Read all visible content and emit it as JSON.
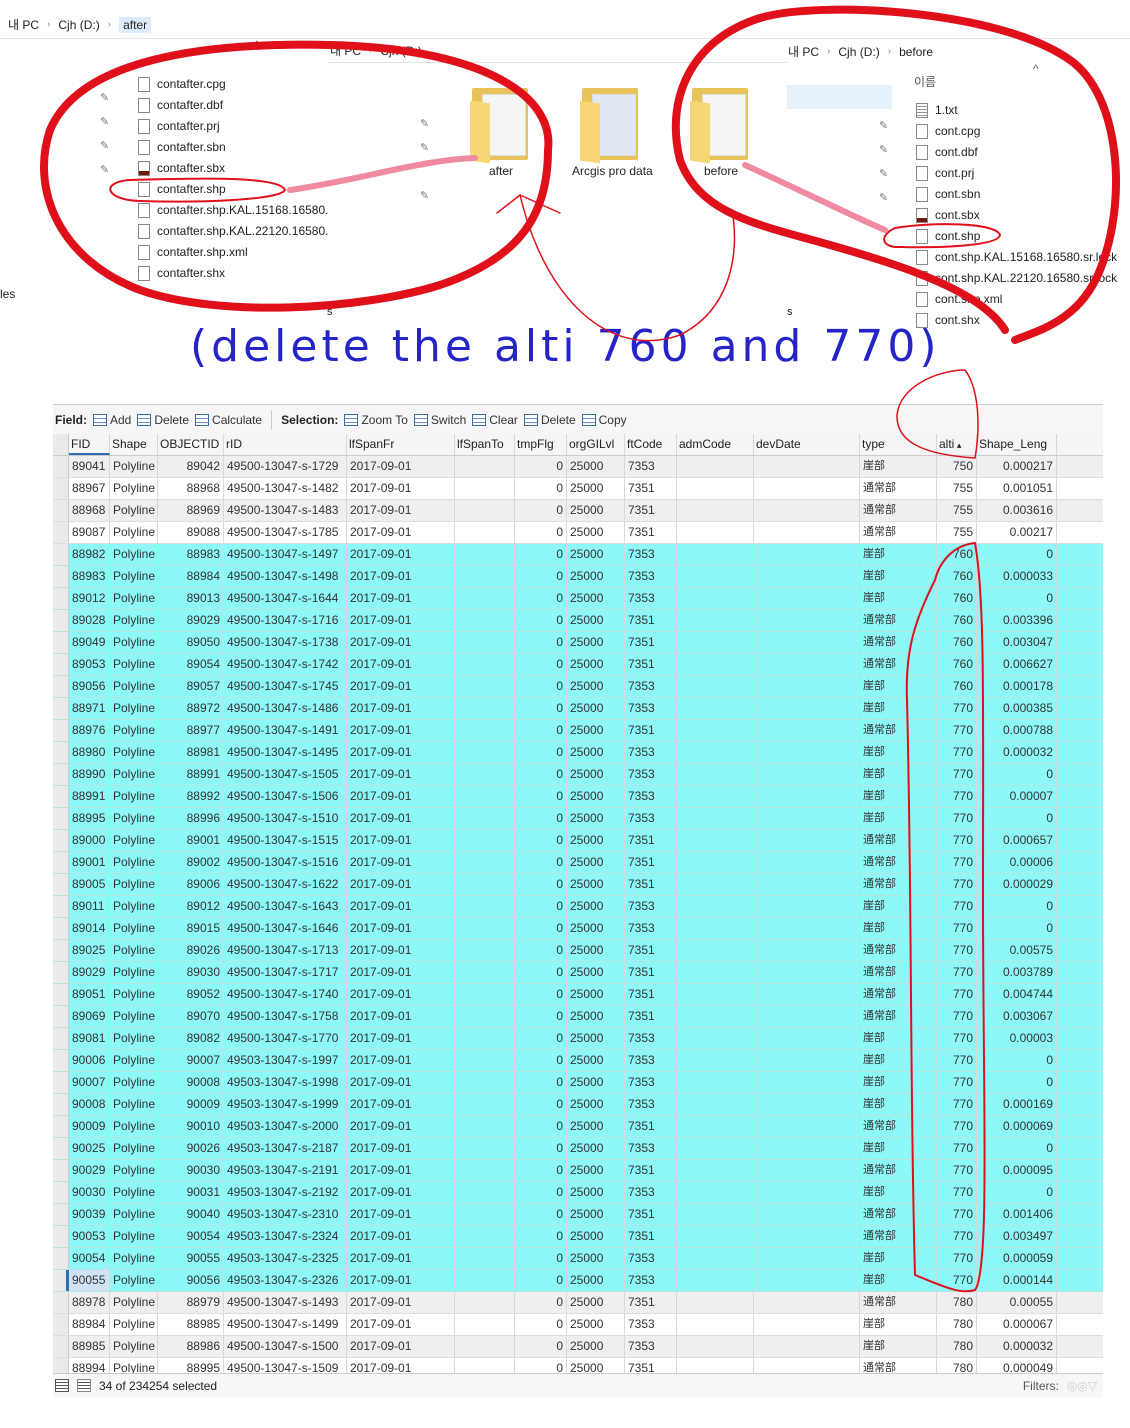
{
  "explorer_after": {
    "breadcrumb": [
      "내 PC",
      "Cjh (D:)",
      "after"
    ],
    "files": [
      {
        "name": "contafter.cpg",
        "icon": "file-icon"
      },
      {
        "name": "contafter.dbf",
        "icon": "file-icon"
      },
      {
        "name": "contafter.prj",
        "icon": "file-icon"
      },
      {
        "name": "contafter.sbn",
        "icon": "file-icon"
      },
      {
        "name": "contafter.sbx",
        "icon": "sbx-file-icon"
      },
      {
        "name": "contafter.shp",
        "icon": "file-icon"
      },
      {
        "name": "contafter.shp.KAL.15168.16580.",
        "icon": "file-icon"
      },
      {
        "name": "contafter.shp.KAL.22120.16580.",
        "icon": "file-icon"
      },
      {
        "name": "contafter.shp.xml",
        "icon": "file-icon"
      },
      {
        "name": "contafter.shx",
        "icon": "file-icon"
      }
    ],
    "side_text": "les"
  },
  "explorer_drive": {
    "breadcrumb": [
      "내 PC",
      "Cjh (D:)"
    ],
    "folders": [
      "after",
      "Arcgis pro data",
      "before"
    ],
    "side_text": "s"
  },
  "explorer_before": {
    "breadcrumb": [
      "내 PC",
      "Cjh (D:)",
      "before"
    ],
    "column_header": "이름",
    "files": [
      {
        "name": "1.txt",
        "icon": "text-file-icon"
      },
      {
        "name": "cont.cpg",
        "icon": "file-icon"
      },
      {
        "name": "cont.dbf",
        "icon": "file-icon"
      },
      {
        "name": "cont.prj",
        "icon": "file-icon"
      },
      {
        "name": "cont.sbn",
        "icon": "file-icon"
      },
      {
        "name": "cont.sbx",
        "icon": "sbx-file-icon"
      },
      {
        "name": "cont.shp",
        "icon": "file-icon"
      },
      {
        "name": "cont.shp.KAL.15168.16580.sr.lock",
        "icon": "file-icon"
      },
      {
        "name": "cont.shp.KAL.22120.16580.sr.lock",
        "icon": "file-icon"
      },
      {
        "name": "cont.shp.xml",
        "icon": "file-icon"
      },
      {
        "name": "cont.shx",
        "icon": "file-icon"
      }
    ],
    "side_text": "s"
  },
  "annotation": {
    "text": "(delete the alti 760 and 770)",
    "text_color": "#2424c8",
    "marker_color": "#e0101a",
    "link_color": "#f08aa0"
  },
  "toolbar": {
    "field_label": "Field:",
    "field_buttons": [
      "Add",
      "Delete",
      "Calculate"
    ],
    "selection_label": "Selection:",
    "selection_buttons": [
      "Zoom To",
      "Switch",
      "Clear",
      "Delete",
      "Copy"
    ]
  },
  "table": {
    "columns": [
      "FID",
      "Shape",
      "OBJECTID",
      "rID",
      "lfSpanFr",
      "lfSpanTo",
      "tmpFlg",
      "orgGILvl",
      "ftCode",
      "admCode",
      "devDate",
      "type",
      "alti",
      "Shape_Leng"
    ],
    "sorted_column": "alti",
    "selection_color": "#8ef8f8",
    "rows": [
      {
        "sel": false,
        "v": [
          "89041",
          "Polyline",
          "89042",
          "49500-13047-s-1729",
          "2017-09-01",
          "",
          "0",
          "25000",
          "7353",
          "",
          "",
          "崖部",
          "750",
          "0.000217"
        ]
      },
      {
        "sel": false,
        "v": [
          "88967",
          "Polyline",
          "88968",
          "49500-13047-s-1482",
          "2017-09-01",
          "",
          "0",
          "25000",
          "7351",
          "",
          "",
          "通常部",
          "755",
          "0.001051"
        ]
      },
      {
        "sel": false,
        "v": [
          "88968",
          "Polyline",
          "88969",
          "49500-13047-s-1483",
          "2017-09-01",
          "",
          "0",
          "25000",
          "7351",
          "",
          "",
          "通常部",
          "755",
          "0.003616"
        ]
      },
      {
        "sel": false,
        "v": [
          "89087",
          "Polyline",
          "89088",
          "49500-13047-s-1785",
          "2017-09-01",
          "",
          "0",
          "25000",
          "7351",
          "",
          "",
          "通常部",
          "755",
          "0.00217"
        ]
      },
      {
        "sel": true,
        "v": [
          "88982",
          "Polyline",
          "88983",
          "49500-13047-s-1497",
          "2017-09-01",
          "",
          "0",
          "25000",
          "7353",
          "",
          "",
          "崖部",
          "760",
          "0"
        ]
      },
      {
        "sel": true,
        "v": [
          "88983",
          "Polyline",
          "88984",
          "49500-13047-s-1498",
          "2017-09-01",
          "",
          "0",
          "25000",
          "7353",
          "",
          "",
          "崖部",
          "760",
          "0.000033"
        ]
      },
      {
        "sel": true,
        "v": [
          "89012",
          "Polyline",
          "89013",
          "49500-13047-s-1644",
          "2017-09-01",
          "",
          "0",
          "25000",
          "7353",
          "",
          "",
          "崖部",
          "760",
          "0"
        ]
      },
      {
        "sel": true,
        "v": [
          "89028",
          "Polyline",
          "89029",
          "49500-13047-s-1716",
          "2017-09-01",
          "",
          "0",
          "25000",
          "7351",
          "",
          "",
          "通常部",
          "760",
          "0.003396"
        ]
      },
      {
        "sel": true,
        "v": [
          "89049",
          "Polyline",
          "89050",
          "49500-13047-s-1738",
          "2017-09-01",
          "",
          "0",
          "25000",
          "7351",
          "",
          "",
          "通常部",
          "760",
          "0.003047"
        ]
      },
      {
        "sel": true,
        "v": [
          "89053",
          "Polyline",
          "89054",
          "49500-13047-s-1742",
          "2017-09-01",
          "",
          "0",
          "25000",
          "7351",
          "",
          "",
          "通常部",
          "760",
          "0.006627"
        ]
      },
      {
        "sel": true,
        "v": [
          "89056",
          "Polyline",
          "89057",
          "49500-13047-s-1745",
          "2017-09-01",
          "",
          "0",
          "25000",
          "7353",
          "",
          "",
          "崖部",
          "760",
          "0.000178"
        ]
      },
      {
        "sel": true,
        "v": [
          "88971",
          "Polyline",
          "88972",
          "49500-13047-s-1486",
          "2017-09-01",
          "",
          "0",
          "25000",
          "7353",
          "",
          "",
          "崖部",
          "770",
          "0.000385"
        ]
      },
      {
        "sel": true,
        "v": [
          "88976",
          "Polyline",
          "88977",
          "49500-13047-s-1491",
          "2017-09-01",
          "",
          "0",
          "25000",
          "7351",
          "",
          "",
          "通常部",
          "770",
          "0.000788"
        ]
      },
      {
        "sel": true,
        "v": [
          "88980",
          "Polyline",
          "88981",
          "49500-13047-s-1495",
          "2017-09-01",
          "",
          "0",
          "25000",
          "7353",
          "",
          "",
          "崖部",
          "770",
          "0.000032"
        ]
      },
      {
        "sel": true,
        "v": [
          "88990",
          "Polyline",
          "88991",
          "49500-13047-s-1505",
          "2017-09-01",
          "",
          "0",
          "25000",
          "7353",
          "",
          "",
          "崖部",
          "770",
          "0"
        ]
      },
      {
        "sel": true,
        "v": [
          "88991",
          "Polyline",
          "88992",
          "49500-13047-s-1506",
          "2017-09-01",
          "",
          "0",
          "25000",
          "7353",
          "",
          "",
          "崖部",
          "770",
          "0.00007"
        ]
      },
      {
        "sel": true,
        "v": [
          "88995",
          "Polyline",
          "88996",
          "49500-13047-s-1510",
          "2017-09-01",
          "",
          "0",
          "25000",
          "7353",
          "",
          "",
          "崖部",
          "770",
          "0"
        ]
      },
      {
        "sel": true,
        "v": [
          "89000",
          "Polyline",
          "89001",
          "49500-13047-s-1515",
          "2017-09-01",
          "",
          "0",
          "25000",
          "7351",
          "",
          "",
          "通常部",
          "770",
          "0.000657"
        ]
      },
      {
        "sel": true,
        "v": [
          "89001",
          "Polyline",
          "89002",
          "49500-13047-s-1516",
          "2017-09-01",
          "",
          "0",
          "25000",
          "7351",
          "",
          "",
          "通常部",
          "770",
          "0.00006"
        ]
      },
      {
        "sel": true,
        "v": [
          "89005",
          "Polyline",
          "89006",
          "49500-13047-s-1622",
          "2017-09-01",
          "",
          "0",
          "25000",
          "7351",
          "",
          "",
          "通常部",
          "770",
          "0.000029"
        ]
      },
      {
        "sel": true,
        "v": [
          "89011",
          "Polyline",
          "89012",
          "49500-13047-s-1643",
          "2017-09-01",
          "",
          "0",
          "25000",
          "7353",
          "",
          "",
          "崖部",
          "770",
          "0"
        ]
      },
      {
        "sel": true,
        "v": [
          "89014",
          "Polyline",
          "89015",
          "49500-13047-s-1646",
          "2017-09-01",
          "",
          "0",
          "25000",
          "7353",
          "",
          "",
          "崖部",
          "770",
          "0"
        ]
      },
      {
        "sel": true,
        "v": [
          "89025",
          "Polyline",
          "89026",
          "49500-13047-s-1713",
          "2017-09-01",
          "",
          "0",
          "25000",
          "7351",
          "",
          "",
          "通常部",
          "770",
          "0.00575"
        ]
      },
      {
        "sel": true,
        "v": [
          "89029",
          "Polyline",
          "89030",
          "49500-13047-s-1717",
          "2017-09-01",
          "",
          "0",
          "25000",
          "7351",
          "",
          "",
          "通常部",
          "770",
          "0.003789"
        ]
      },
      {
        "sel": true,
        "v": [
          "89051",
          "Polyline",
          "89052",
          "49500-13047-s-1740",
          "2017-09-01",
          "",
          "0",
          "25000",
          "7351",
          "",
          "",
          "通常部",
          "770",
          "0.004744"
        ]
      },
      {
        "sel": true,
        "v": [
          "89069",
          "Polyline",
          "89070",
          "49500-13047-s-1758",
          "2017-09-01",
          "",
          "0",
          "25000",
          "7351",
          "",
          "",
          "通常部",
          "770",
          "0.003067"
        ]
      },
      {
        "sel": true,
        "v": [
          "89081",
          "Polyline",
          "89082",
          "49500-13047-s-1770",
          "2017-09-01",
          "",
          "0",
          "25000",
          "7353",
          "",
          "",
          "崖部",
          "770",
          "0.00003"
        ]
      },
      {
        "sel": true,
        "v": [
          "90006",
          "Polyline",
          "90007",
          "49503-13047-s-1997",
          "2017-09-01",
          "",
          "0",
          "25000",
          "7353",
          "",
          "",
          "崖部",
          "770",
          "0"
        ]
      },
      {
        "sel": true,
        "v": [
          "90007",
          "Polyline",
          "90008",
          "49503-13047-s-1998",
          "2017-09-01",
          "",
          "0",
          "25000",
          "7353",
          "",
          "",
          "崖部",
          "770",
          "0"
        ]
      },
      {
        "sel": true,
        "v": [
          "90008",
          "Polyline",
          "90009",
          "49503-13047-s-1999",
          "2017-09-01",
          "",
          "0",
          "25000",
          "7353",
          "",
          "",
          "崖部",
          "770",
          "0.000169"
        ]
      },
      {
        "sel": true,
        "v": [
          "90009",
          "Polyline",
          "90010",
          "49503-13047-s-2000",
          "2017-09-01",
          "",
          "0",
          "25000",
          "7351",
          "",
          "",
          "通常部",
          "770",
          "0.000069"
        ]
      },
      {
        "sel": true,
        "v": [
          "90025",
          "Polyline",
          "90026",
          "49503-13047-s-2187",
          "2017-09-01",
          "",
          "0",
          "25000",
          "7353",
          "",
          "",
          "崖部",
          "770",
          "0"
        ]
      },
      {
        "sel": true,
        "v": [
          "90029",
          "Polyline",
          "90030",
          "49503-13047-s-2191",
          "2017-09-01",
          "",
          "0",
          "25000",
          "7351",
          "",
          "",
          "通常部",
          "770",
          "0.000095"
        ]
      },
      {
        "sel": true,
        "v": [
          "90030",
          "Polyline",
          "90031",
          "49503-13047-s-2192",
          "2017-09-01",
          "",
          "0",
          "25000",
          "7353",
          "",
          "",
          "崖部",
          "770",
          "0"
        ]
      },
      {
        "sel": true,
        "v": [
          "90039",
          "Polyline",
          "90040",
          "49503-13047-s-2310",
          "2017-09-01",
          "",
          "0",
          "25000",
          "7351",
          "",
          "",
          "通常部",
          "770",
          "0.001406"
        ]
      },
      {
        "sel": true,
        "v": [
          "90053",
          "Polyline",
          "90054",
          "49503-13047-s-2324",
          "2017-09-01",
          "",
          "0",
          "25000",
          "7351",
          "",
          "",
          "通常部",
          "770",
          "0.003497"
        ]
      },
      {
        "sel": true,
        "v": [
          "90054",
          "Polyline",
          "90055",
          "49503-13047-s-2325",
          "2017-09-01",
          "",
          "0",
          "25000",
          "7353",
          "",
          "",
          "崖部",
          "770",
          "0.000059"
        ]
      },
      {
        "sel": true,
        "active": true,
        "v": [
          "90055",
          "Polyline",
          "90056",
          "49503-13047-s-2326",
          "2017-09-01",
          "",
          "0",
          "25000",
          "7353",
          "",
          "",
          "崖部",
          "770",
          "0.000144"
        ]
      },
      {
        "sel": false,
        "v": [
          "88978",
          "Polyline",
          "88979",
          "49500-13047-s-1493",
          "2017-09-01",
          "",
          "0",
          "25000",
          "7351",
          "",
          "",
          "通常部",
          "780",
          "0.00055"
        ]
      },
      {
        "sel": false,
        "v": [
          "88984",
          "Polyline",
          "88985",
          "49500-13047-s-1499",
          "2017-09-01",
          "",
          "0",
          "25000",
          "7353",
          "",
          "",
          "崖部",
          "780",
          "0.000067"
        ]
      },
      {
        "sel": false,
        "v": [
          "88985",
          "Polyline",
          "88986",
          "49500-13047-s-1500",
          "2017-09-01",
          "",
          "0",
          "25000",
          "7353",
          "",
          "",
          "崖部",
          "780",
          "0.000032"
        ]
      },
      {
        "sel": false,
        "v": [
          "88994",
          "Polyline",
          "88995",
          "49500-13047-s-1509",
          "2017-09-01",
          "",
          "0",
          "25000",
          "7351",
          "",
          "",
          "通常部",
          "780",
          "0.000049"
        ]
      }
    ]
  },
  "status": {
    "selection_text": "34 of 234254 selected",
    "filters_label": "Filters:"
  }
}
